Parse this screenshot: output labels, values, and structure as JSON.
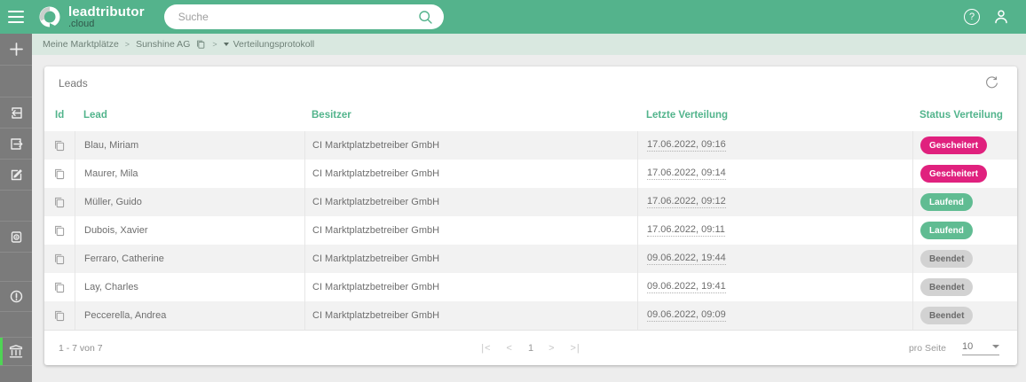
{
  "topbar": {
    "logo_title": "leadtributor",
    "logo_subtitle": ".cloud",
    "search": {
      "placeholder": "Suche"
    },
    "help_glyph": "?"
  },
  "breadcrumb": {
    "item1": "Meine Marktplätze",
    "item2": "Sunshine AG",
    "item3": "Verteilungsprotokoll",
    "separator": ">"
  },
  "sidebar": {
    "icons": [
      "plus",
      "import",
      "export",
      "edit",
      "preview",
      "alert",
      "bank"
    ]
  },
  "panel": {
    "title": "Leads"
  },
  "table": {
    "columns": [
      "Id",
      "Lead",
      "Besitzer",
      "Letzte Verteilung",
      "Status Verteilung"
    ],
    "rows": [
      {
        "lead": "Blau, Miriam",
        "besitzer": "CI Marktplatzbetreiber GmbH",
        "letzte": "17.06.2022, 09:16",
        "status": "Gescheitert"
      },
      {
        "lead": "Maurer, Mila",
        "besitzer": "CI Marktplatzbetreiber GmbH",
        "letzte": "17.06.2022, 09:14",
        "status": "Gescheitert"
      },
      {
        "lead": "Müller, Guido",
        "besitzer": "CI Marktplatzbetreiber GmbH",
        "letzte": "17.06.2022, 09:12",
        "status": "Laufend"
      },
      {
        "lead": "Dubois, Xavier",
        "besitzer": "CI Marktplatzbetreiber GmbH",
        "letzte": "17.06.2022, 09:11",
        "status": "Laufend"
      },
      {
        "lead": "Ferraro, Catherine",
        "besitzer": "CI Marktplatzbetreiber GmbH",
        "letzte": "09.06.2022, 19:44",
        "status": "Beendet"
      },
      {
        "lead": "Lay, Charles",
        "besitzer": "CI Marktplatzbetreiber GmbH",
        "letzte": "09.06.2022, 19:41",
        "status": "Beendet"
      },
      {
        "lead": "Peccerella, Andrea",
        "besitzer": "CI Marktplatzbetreiber GmbH",
        "letzte": "09.06.2022, 09:09",
        "status": "Beendet"
      }
    ]
  },
  "status_styles": {
    "Gescheitert": {
      "bg": "#e0217e",
      "fg": "#ffffff"
    },
    "Laufend": {
      "bg": "#60bc92",
      "fg": "#ffffff"
    },
    "Beendet": {
      "bg": "#d2d2d2",
      "fg": "#6b6b6b"
    }
  },
  "colors": {
    "accent": "#52b48c",
    "topbar": "#54b38c",
    "active_indicator": "#4fd455"
  },
  "footer": {
    "range": "1 - 7 von 7",
    "pagination": {
      "first": "|<",
      "prev": "<",
      "page": "1",
      "next": ">",
      "last": ">|"
    },
    "per_page_label": "pro Seite",
    "per_page_value": "10"
  }
}
